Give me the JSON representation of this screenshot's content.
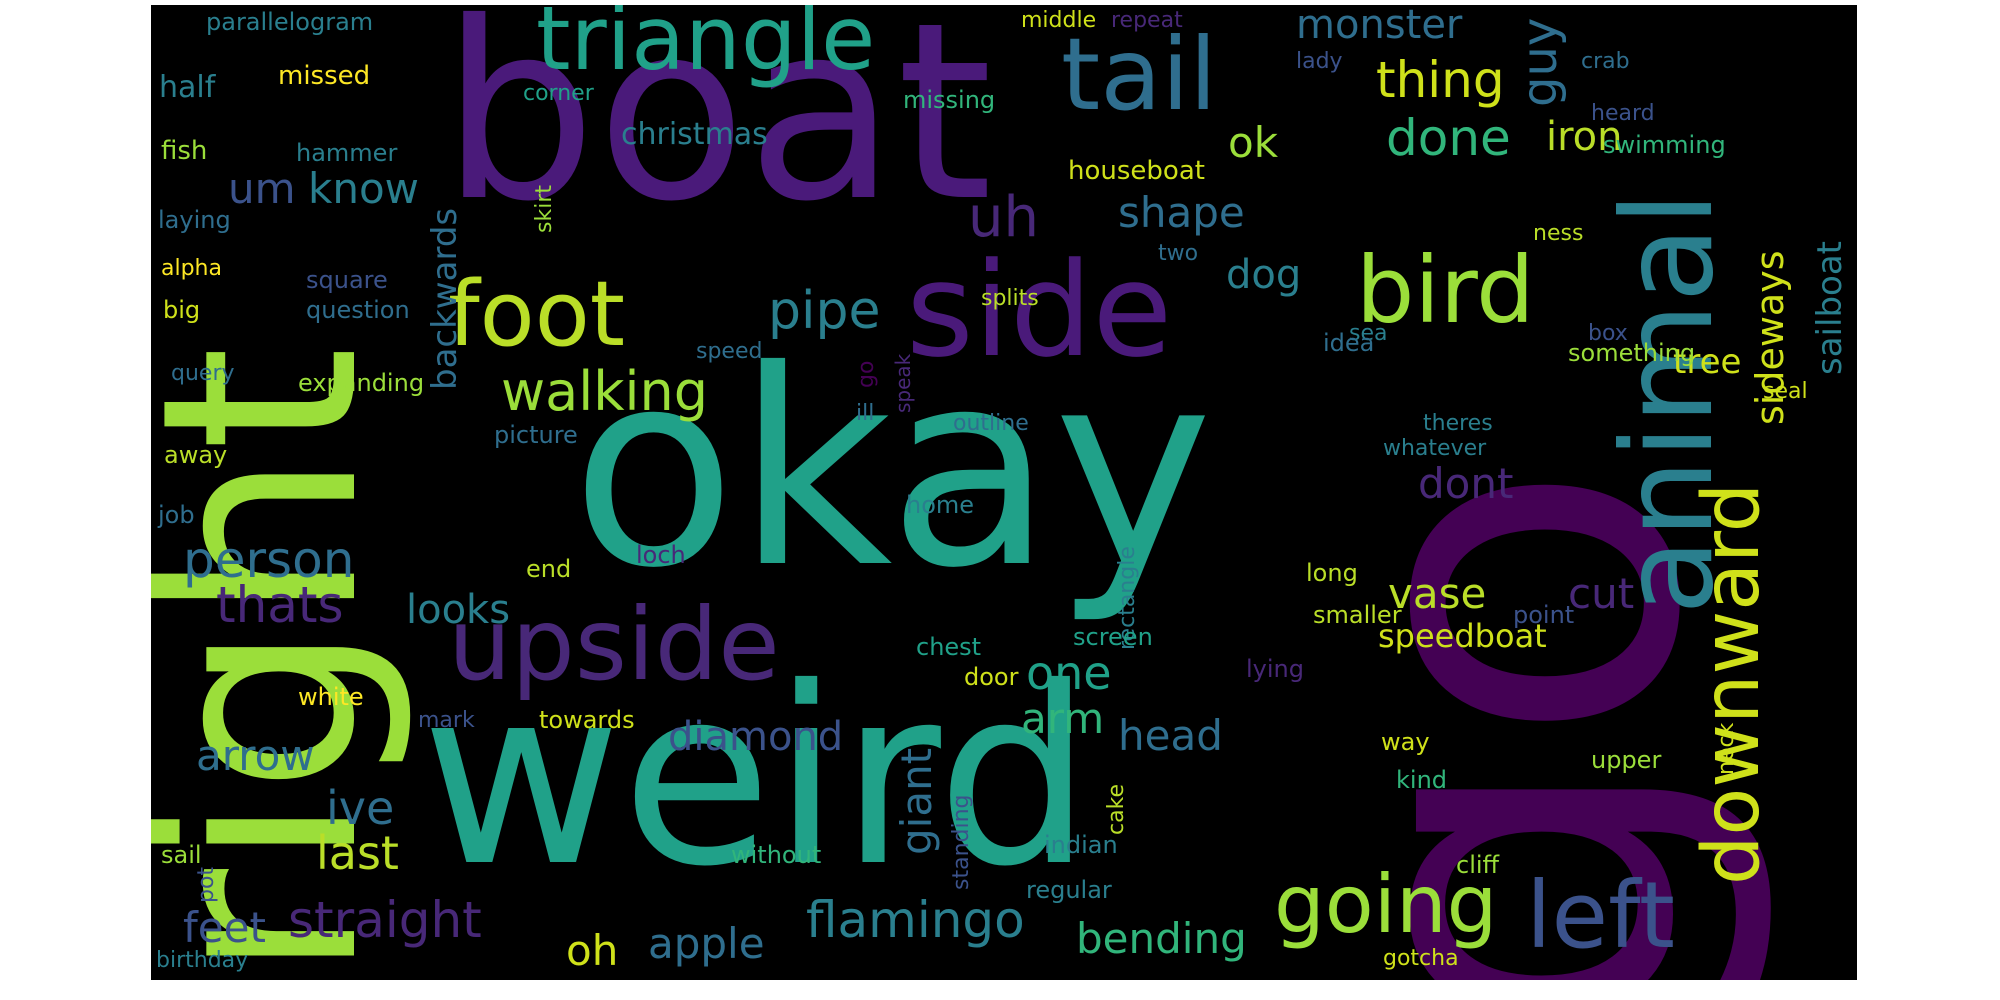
{
  "background_color": "#000000",
  "palette": [
    "#9bde3a",
    "#4a1a7a",
    "#20a189",
    "#3b528b",
    "#cfe11a",
    "#2f6e8e",
    "#bade28",
    "#2a7f8e",
    "#482878",
    "#31b57b",
    "#fde725",
    "#440154"
  ],
  "words": [
    {
      "text": "go",
      "color": "#440154"
    },
    {
      "text": "right",
      "color": "#9bde3a"
    },
    {
      "text": "boat",
      "color": "#4a1a7a"
    },
    {
      "text": "okay",
      "color": "#20a189"
    },
    {
      "text": "weird",
      "color": "#20a189"
    },
    {
      "text": "side",
      "color": "#4a1a7a"
    },
    {
      "text": "animal",
      "color": "#2a7f8e"
    },
    {
      "text": "triangle",
      "color": "#20a189"
    },
    {
      "text": "tail",
      "color": "#2f6e8e"
    },
    {
      "text": "upside",
      "color": "#482878"
    },
    {
      "text": "foot",
      "color": "#bade28"
    },
    {
      "text": "bird",
      "color": "#9bde3a"
    },
    {
      "text": "downward",
      "color": "#cfe11a"
    },
    {
      "text": "going",
      "color": "#9bde3a"
    },
    {
      "text": "left",
      "color": "#3b528b"
    },
    {
      "text": "walking",
      "color": "#9bde3a"
    },
    {
      "text": "pipe",
      "color": "#2a7f8e"
    },
    {
      "text": "person",
      "color": "#2f6e8e"
    },
    {
      "text": "straight",
      "color": "#482878"
    },
    {
      "text": "flamingo",
      "color": "#2a7f8e"
    },
    {
      "text": "thats",
      "color": "#482878"
    },
    {
      "text": "thing",
      "color": "#cfe11a"
    },
    {
      "text": "done",
      "color": "#31b57b"
    },
    {
      "text": "monster",
      "color": "#2f6e8e"
    },
    {
      "text": "guy",
      "color": "#2f6e8e"
    },
    {
      "text": "iron",
      "color": "#bade28"
    },
    {
      "text": "sideways",
      "color": "#cfe11a"
    },
    {
      "text": "sailboat",
      "color": "#2a7f8e"
    },
    {
      "text": "know",
      "color": "#2a7f8e"
    },
    {
      "text": "um",
      "color": "#3b528b"
    },
    {
      "text": "uh",
      "color": "#482878"
    },
    {
      "text": "ok",
      "color": "#9bde3a"
    },
    {
      "text": "shape",
      "color": "#2f6e8e"
    },
    {
      "text": "backwards",
      "color": "#2f6e8e"
    },
    {
      "text": "dog",
      "color": "#2a7f8e"
    },
    {
      "text": "one",
      "color": "#20a189"
    },
    {
      "text": "dont",
      "color": "#482878"
    },
    {
      "text": "vase",
      "color": "#bade28"
    },
    {
      "text": "cut",
      "color": "#482878"
    },
    {
      "text": "looks",
      "color": "#2a7f8e"
    },
    {
      "text": "arrow",
      "color": "#2f6e8e"
    },
    {
      "text": "diamond",
      "color": "#3b528b"
    },
    {
      "text": "giant",
      "color": "#2f6e8e"
    },
    {
      "text": "arm",
      "color": "#31b57b"
    },
    {
      "text": "head",
      "color": "#2f6e8e"
    },
    {
      "text": "speedboat",
      "color": "#cfe11a"
    },
    {
      "text": "ive",
      "color": "#2f6e8e"
    },
    {
      "text": "last",
      "color": "#bade28"
    },
    {
      "text": "feet",
      "color": "#3b528b"
    },
    {
      "text": "oh",
      "color": "#cfe11a"
    },
    {
      "text": "apple",
      "color": "#2f6e8e"
    },
    {
      "text": "bending",
      "color": "#31b57b"
    },
    {
      "text": "tree",
      "color": "#cfe11a"
    },
    {
      "text": "christmas",
      "color": "#2a7f8e"
    },
    {
      "text": "parallelogram",
      "color": "#2a7f8e"
    },
    {
      "text": "half",
      "color": "#2a7f8e"
    },
    {
      "text": "missed",
      "color": "#fde725"
    },
    {
      "text": "middle",
      "color": "#cfe11a"
    },
    {
      "text": "repeat",
      "color": "#482878"
    },
    {
      "text": "lady",
      "color": "#3b528b"
    },
    {
      "text": "crab",
      "color": "#2f6e8e"
    },
    {
      "text": "heard",
      "color": "#3b528b"
    },
    {
      "text": "swimming",
      "color": "#31b57b"
    },
    {
      "text": "corner",
      "color": "#20a189"
    },
    {
      "text": "missing",
      "color": "#31b57b"
    },
    {
      "text": "fish",
      "color": "#9bde3a"
    },
    {
      "text": "hammer",
      "color": "#2a7f8e"
    },
    {
      "text": "houseboat",
      "color": "#cfe11a"
    },
    {
      "text": "laying",
      "color": "#2f6e8e"
    },
    {
      "text": "skirt",
      "color": "#9bde3a"
    },
    {
      "text": "ness",
      "color": "#bade28"
    },
    {
      "text": "alpha",
      "color": "#fde725"
    },
    {
      "text": "two",
      "color": "#2f6e8e"
    },
    {
      "text": "square",
      "color": "#3b528b"
    },
    {
      "text": "big",
      "color": "#cfe11a"
    },
    {
      "text": "question",
      "color": "#2f6e8e"
    },
    {
      "text": "splits",
      "color": "#bade28"
    },
    {
      "text": "sea",
      "color": "#2a7f8e"
    },
    {
      "text": "speed",
      "color": "#2f6e8e"
    },
    {
      "text": "idea",
      "color": "#2f6e8e"
    },
    {
      "text": "box",
      "color": "#3b528b"
    },
    {
      "text": "something",
      "color": "#9bde3a"
    },
    {
      "text": "seal",
      "color": "#cfe11a"
    },
    {
      "text": "query",
      "color": "#2f6e8e"
    },
    {
      "text": "expanding",
      "color": "#9bde3a"
    },
    {
      "text": "speak",
      "color": "#482878"
    },
    {
      "text": "ill",
      "color": "#2f6e8e"
    },
    {
      "text": "outline",
      "color": "#2f6e8e"
    },
    {
      "text": "picture",
      "color": "#2f6e8e"
    },
    {
      "text": "theres",
      "color": "#2a7f8e"
    },
    {
      "text": "whatever",
      "color": "#2a7f8e"
    },
    {
      "text": "away",
      "color": "#bade28"
    },
    {
      "text": "rectangle",
      "color": "#2a7f8e"
    },
    {
      "text": "home",
      "color": "#2a7f8e"
    },
    {
      "text": "job",
      "color": "#2f6e8e"
    },
    {
      "text": "loch",
      "color": "#482878"
    },
    {
      "text": "end",
      "color": "#bade28"
    },
    {
      "text": "long",
      "color": "#bade28"
    },
    {
      "text": "smaller",
      "color": "#bade28"
    },
    {
      "text": "point",
      "color": "#3b528b"
    },
    {
      "text": "chest",
      "color": "#20a189"
    },
    {
      "text": "screen",
      "color": "#20a189"
    },
    {
      "text": "door",
      "color": "#cfe11a"
    },
    {
      "text": "lying",
      "color": "#482878"
    },
    {
      "text": "white",
      "color": "#fde725"
    },
    {
      "text": "mark",
      "color": "#3b528b"
    },
    {
      "text": "towards",
      "color": "#cfe11a"
    },
    {
      "text": "way",
      "color": "#cfe11a"
    },
    {
      "text": "kind",
      "color": "#31b57b"
    },
    {
      "text": "upper",
      "color": "#9bde3a"
    },
    {
      "text": "neck",
      "color": "#cfe11a"
    },
    {
      "text": "standing",
      "color": "#3b528b"
    },
    {
      "text": "cake",
      "color": "#bade28"
    },
    {
      "text": "indian",
      "color": "#2a7f8e"
    },
    {
      "text": "sail",
      "color": "#9bde3a"
    },
    {
      "text": "without",
      "color": "#31b57b"
    },
    {
      "text": "cliff",
      "color": "#9bde3a"
    },
    {
      "text": "pot",
      "color": "#3b528b"
    },
    {
      "text": "regular",
      "color": "#2a7f8e"
    },
    {
      "text": "birthday",
      "color": "#2a7f8e"
    },
    {
      "text": "gotcha",
      "color": "#cfe11a"
    }
  ]
}
